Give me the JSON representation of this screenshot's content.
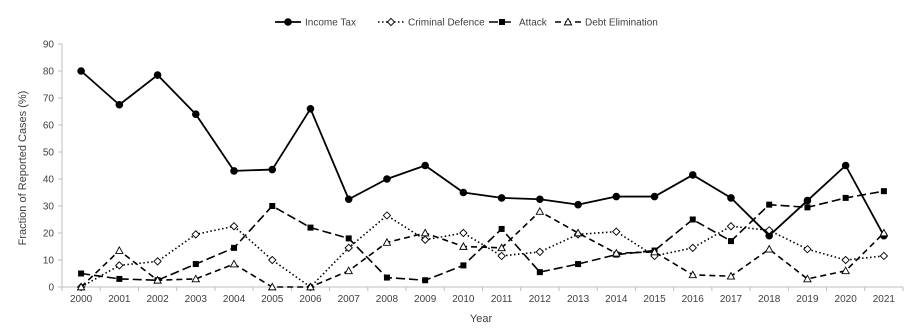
{
  "chart_data": {
    "type": "line",
    "title": "",
    "xlabel": "Year",
    "ylabel": "Fraction of Reported Cases (%)",
    "categories": [
      "2000",
      "2001",
      "2002",
      "2003",
      "2004",
      "2005",
      "2006",
      "2007",
      "2008",
      "2009",
      "2010",
      "2011",
      "2012",
      "2013",
      "2014",
      "2015",
      "2016",
      "2017",
      "2018",
      "2019",
      "2020",
      "2021"
    ],
    "ylim": [
      0,
      90
    ],
    "yticks": [
      0,
      10,
      20,
      30,
      40,
      50,
      60,
      70,
      80,
      90
    ],
    "grid": false,
    "legend_position": "top",
    "series": [
      {
        "name": "Income Tax",
        "color": "#000000",
        "line_style": "solid",
        "marker": "filled-circle",
        "values": [
          80.0,
          67.5,
          78.5,
          64.0,
          43.0,
          43.5,
          66.0,
          32.5,
          40.0,
          45.0,
          35.0,
          33.0,
          32.5,
          30.5,
          33.5,
          33.5,
          41.5,
          33.0,
          19.0,
          32.0,
          45.0,
          19.0
        ]
      },
      {
        "name": "Criminal Defence",
        "color": "#000000",
        "line_style": "dotted",
        "marker": "open-diamond",
        "values": [
          0.0,
          8.0,
          9.5,
          19.5,
          22.5,
          10.0,
          0.0,
          14.5,
          26.5,
          17.5,
          20.0,
          11.5,
          13.0,
          19.5,
          20.5,
          11.5,
          14.5,
          22.5,
          21.0,
          14.0,
          10.0,
          11.5
        ]
      },
      {
        "name": "Attack",
        "color": "#000000",
        "line_style": "long-dash",
        "marker": "filled-square",
        "values": [
          5.0,
          3.0,
          2.5,
          8.5,
          14.5,
          30.0,
          22.0,
          18.0,
          3.5,
          2.5,
          8.0,
          21.5,
          5.5,
          8.5,
          12.0,
          13.5,
          25.0,
          17.0,
          30.5,
          29.5,
          33.0,
          35.5
        ]
      },
      {
        "name": "Debt Elimination",
        "color": "#000000",
        "line_style": "dash",
        "marker": "open-triangle",
        "values": [
          0.0,
          13.5,
          2.5,
          3.0,
          8.5,
          0.0,
          0.0,
          6.0,
          16.5,
          20.0,
          15.0,
          14.5,
          28.0,
          20.0,
          12.5,
          13.0,
          4.5,
          4.0,
          14.0,
          3.0,
          6.0,
          20.0
        ]
      }
    ]
  }
}
